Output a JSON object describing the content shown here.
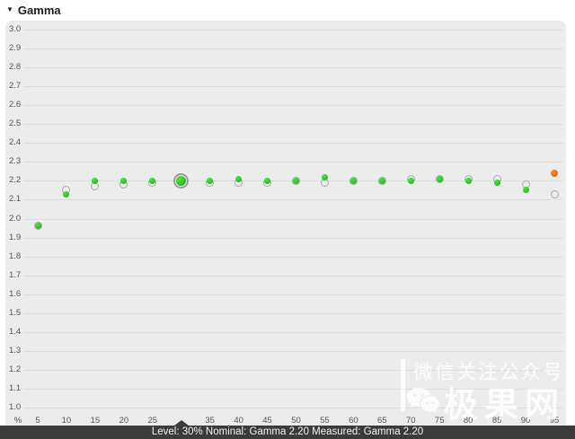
{
  "header": {
    "collapse_icon": "▼",
    "title": "Gamma"
  },
  "status_bar": {
    "text": "Level: 30% Nominal: Gamma 2.20 Measured: Gamma 2.20"
  },
  "watermark": {
    "line1": "微信关注公众号",
    "line2": "极果网",
    "icon": "wechat-icon"
  },
  "colors": {
    "panel_bg": "#ececec",
    "gridline": "#dcdcdc",
    "measured_green": "#24bd1f",
    "measured_orange": "#de6f12",
    "nominal_stroke": "#a9a9a9",
    "selected_ring": "#9b9b9b",
    "status_bar_bg": "#3b3b3b",
    "tick_label": "#555555"
  },
  "chart_data": {
    "type": "scatter",
    "title": "Gamma",
    "xlabel": "%",
    "ylabel": "",
    "ylim": [
      1.0,
      3.0
    ],
    "ytick_step": 0.1,
    "x": [
      5,
      10,
      15,
      20,
      25,
      30,
      35,
      40,
      45,
      50,
      55,
      60,
      65,
      70,
      75,
      80,
      85,
      90,
      95
    ],
    "hidden_xtick": 30,
    "selected_level": 30,
    "series": [
      {
        "name": "Nominal",
        "style": "open-gray-circle",
        "values": [
          1.96,
          2.15,
          2.17,
          2.18,
          2.19,
          2.2,
          2.19,
          2.19,
          2.19,
          2.2,
          2.19,
          2.2,
          2.2,
          2.21,
          2.21,
          2.21,
          2.21,
          2.18,
          2.13
        ]
      },
      {
        "name": "Measured",
        "style": "filled-dot",
        "values": [
          1.96,
          2.13,
          2.2,
          2.2,
          2.2,
          2.2,
          2.2,
          2.21,
          2.2,
          2.2,
          2.22,
          2.2,
          2.2,
          2.2,
          2.21,
          2.2,
          2.19,
          2.15,
          2.24
        ],
        "point_colors": [
          "green",
          "green",
          "green",
          "green",
          "green",
          "green",
          "green",
          "green",
          "green",
          "green",
          "green",
          "green",
          "green",
          "green",
          "green",
          "green",
          "green",
          "green",
          "orange"
        ]
      }
    ],
    "selected_info": {
      "level": "30%",
      "nominal": "Gamma 2.20",
      "measured": "Gamma 2.20"
    }
  }
}
